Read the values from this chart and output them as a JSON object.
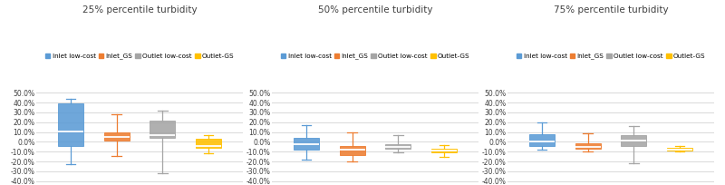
{
  "titles": [
    "25% percentile turbidity",
    "50% percentile turbidity",
    "75% percentile turbidity"
  ],
  "legend_labels": [
    "Inlet low-cost",
    "Inlet_GS",
    "Outlet low-cost",
    "Outlet-GS"
  ],
  "colors": [
    "#5B9BD5",
    "#ED7D31",
    "#A5A5A5",
    "#FFC000"
  ],
  "ylim": [
    -0.42,
    0.54
  ],
  "yticks": [
    -0.4,
    -0.3,
    -0.2,
    -0.1,
    0.0,
    0.1,
    0.2,
    0.3,
    0.4,
    0.5
  ],
  "ytick_labels": [
    "-40.0%",
    "-30.0%",
    "-20.0%",
    "-10.0%",
    "0.0%",
    "10.0%",
    "20.0%",
    "30.0%",
    "40.0%",
    "50.0%"
  ],
  "box_data": {
    "panel0": [
      {
        "min": -0.23,
        "q1": -0.04,
        "med": 0.11,
        "q3": 0.39,
        "max": 0.44
      },
      {
        "min": -0.14,
        "q1": 0.01,
        "med": 0.05,
        "q3": 0.1,
        "max": 0.28
      },
      {
        "min": -0.32,
        "q1": 0.04,
        "med": 0.07,
        "q3": 0.22,
        "max": 0.32
      },
      {
        "min": -0.12,
        "q1": -0.06,
        "med": -0.04,
        "q3": 0.03,
        "max": 0.07
      }
    ],
    "panel1": [
      {
        "min": -0.18,
        "q1": -0.08,
        "med": -0.02,
        "q3": 0.04,
        "max": 0.17
      },
      {
        "min": -0.2,
        "q1": -0.13,
        "med": -0.08,
        "q3": -0.04,
        "max": 0.1
      },
      {
        "min": -0.11,
        "q1": -0.07,
        "med": -0.05,
        "q3": -0.02,
        "max": 0.07
      },
      {
        "min": -0.15,
        "q1": -0.11,
        "med": -0.09,
        "q3": -0.07,
        "max": -0.03
      }
    ],
    "panel2": [
      {
        "min": -0.08,
        "q1": -0.04,
        "med": 0.0,
        "q3": 0.08,
        "max": 0.2
      },
      {
        "min": -0.1,
        "q1": -0.07,
        "med": -0.05,
        "q3": -0.01,
        "max": 0.09
      },
      {
        "min": -0.22,
        "q1": -0.04,
        "med": 0.01,
        "q3": 0.07,
        "max": 0.16
      },
      {
        "min": -0.1,
        "q1": -0.09,
        "med": -0.08,
        "q3": -0.06,
        "max": -0.04
      }
    ]
  },
  "background_color": "#FFFFFF",
  "grid_color": "#D9D9D9",
  "figsize": [
    8.0,
    2.04
  ],
  "dpi": 100
}
